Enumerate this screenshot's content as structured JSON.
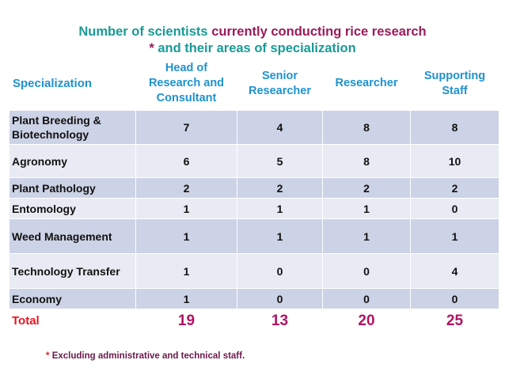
{
  "title": {
    "line1_part1": "Number of scientists",
    "line1_part2": "currently conducting rice research",
    "line2_star": "*",
    "line2_text": "and their areas of specialization"
  },
  "table": {
    "headers": [
      "Specialization",
      "Head of Research and Consultant",
      "Senior Researcher",
      "Researcher",
      "Supporting Staff"
    ],
    "rows": [
      {
        "label": "Plant Breeding & Biotechnology",
        "values": [
          "7",
          "4",
          "8",
          "8"
        ]
      },
      {
        "label": "Agronomy",
        "values": [
          "6",
          "5",
          "8",
          "10"
        ]
      },
      {
        "label": "Plant Pathology",
        "values": [
          "2",
          "2",
          "2",
          "2"
        ]
      },
      {
        "label": "Entomology",
        "values": [
          "1",
          "1",
          "1",
          "0"
        ]
      },
      {
        "label": "Weed Management",
        "values": [
          "1",
          "1",
          "1",
          "1"
        ]
      },
      {
        "label": "Technology Transfer",
        "values": [
          "1",
          "0",
          "0",
          "4"
        ]
      },
      {
        "label": "Economy",
        "values": [
          "1",
          "0",
          "0",
          "0"
        ]
      }
    ],
    "total": {
      "label": "Total",
      "values": [
        "19",
        "13",
        "20",
        "25"
      ]
    }
  },
  "footnote": {
    "star": "*",
    "text": "Excluding administrative and technical staff."
  },
  "colors": {
    "teal": "#1a9a96",
    "maroon": "#9b1b5a",
    "header_blue": "#1e92d0",
    "row_dark": "#cdd3e6",
    "row_light": "#e9ebf4",
    "total_red": "#e8141f",
    "total_value": "#b01361"
  }
}
